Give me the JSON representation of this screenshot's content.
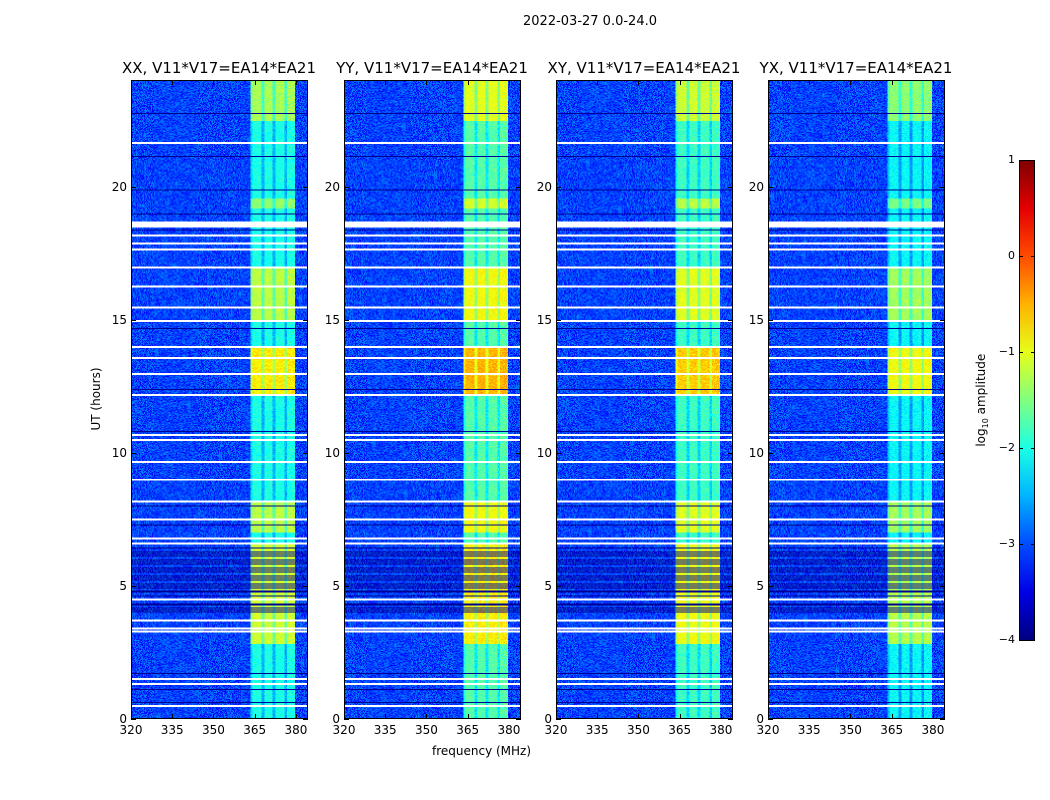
{
  "chart_data": {
    "type": "heatmap",
    "title": "2022-03-27 0.0-24.0",
    "xlabel": "frequency (MHz)",
    "ylabel": "UT (hours)",
    "xlim": [
      320,
      384.4
    ],
    "ylim": [
      0,
      24
    ],
    "xticks": [
      320,
      335,
      350,
      365,
      380
    ],
    "yticks": [
      0,
      5,
      10,
      15,
      20
    ],
    "panels": [
      {
        "title": "XX, V11*V17=EA14*EA21",
        "band_gain": 1.0
      },
      {
        "title": "YY, V11*V17=EA14*EA21",
        "band_gain": 1.25
      },
      {
        "title": "XY, V11*V17=EA14*EA21",
        "band_gain": 1.15
      },
      {
        "title": "YX, V11*V17=EA14*EA21",
        "band_gain": 0.9
      }
    ],
    "background_log_amplitude": -3.0,
    "signal_band_mhz": [
      363.5,
      380
    ],
    "bright_intervals_hours": [
      [
        22.5,
        24,
        -1.3
      ],
      [
        19.2,
        19.6,
        -1.4
      ],
      [
        15.0,
        17.0,
        -1.2
      ],
      [
        12.2,
        14.0,
        -0.8
      ],
      [
        7.0,
        8.2,
        -1.2
      ],
      [
        2.8,
        6.6,
        -1.1
      ]
    ],
    "flagged_hours": [
      21.7,
      18.6,
      18.2,
      17.9,
      17.7,
      17.0,
      16.3,
      15.5,
      15.0,
      14.0,
      13.6,
      13.0,
      12.2,
      10.7,
      10.5,
      9.7,
      9.0,
      8.2,
      7.5,
      6.8,
      6.6,
      4.5,
      3.7,
      3.4,
      3.3,
      1.5,
      1.3,
      0.5
    ],
    "colorbar": {
      "label": "log10 amplitude",
      "label_main": "log",
      "label_sub": "10",
      "label_rest": " amplitude",
      "range": [
        -4,
        1
      ],
      "ticks": [
        "1",
        "0",
        "−1",
        "−2",
        "−3",
        "−4"
      ],
      "colormap": "jet"
    }
  }
}
